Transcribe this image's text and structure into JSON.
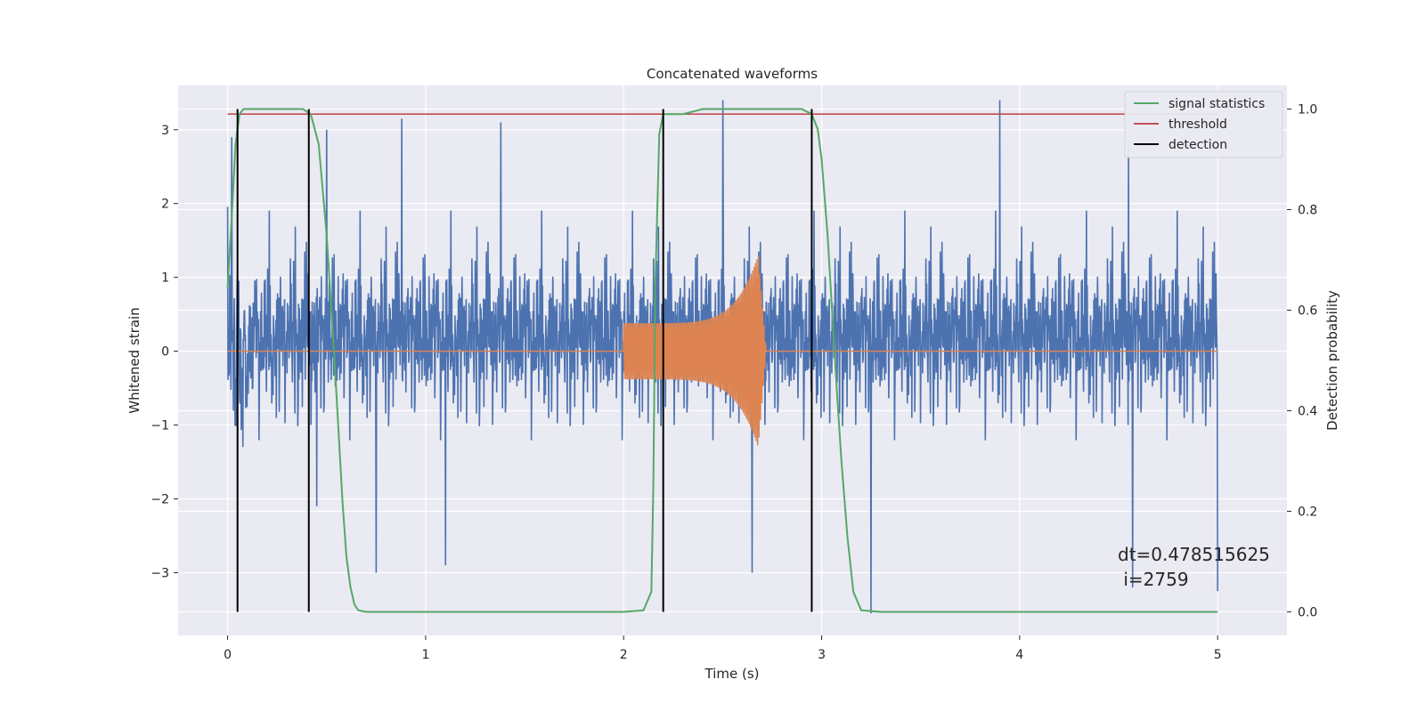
{
  "chart_data": {
    "type": "line",
    "title": "Concatenated waveforms",
    "xlabel": "Time (s)",
    "ylabel": "Whitened strain",
    "ylabel_right": "Detection probability",
    "xlim": [
      -0.25,
      5.35
    ],
    "ylim": [
      -3.85,
      3.6
    ],
    "ylim_right": [
      -0.047,
      1.047
    ],
    "x_ticks": [
      0,
      1,
      2,
      3,
      4,
      5
    ],
    "y_ticks": [
      -3,
      -2,
      -1,
      0,
      1,
      2,
      3
    ],
    "y_ticks_right": [
      0.0,
      0.2,
      0.4,
      0.6,
      0.8,
      1.0
    ],
    "y_tick_labels": [
      "−3",
      "−2",
      "−1",
      "0",
      "1",
      "2",
      "3"
    ],
    "y_tick_labels_right": [
      "0.0",
      "0.2",
      "0.4",
      "0.6",
      "0.8",
      "1.0"
    ],
    "x_tick_labels": [
      "0",
      "1",
      "2",
      "3",
      "4",
      "5"
    ],
    "grid": true,
    "legend_position": "top-right",
    "colors": {
      "strain": "#4c72b0",
      "injection": "#dd8452",
      "signal_statistics": "#55a868",
      "threshold": "#c44e52",
      "detection": "#000000",
      "plot_bg": "#eaeaf2",
      "grid": "#ffffff"
    },
    "series": [
      {
        "name": "",
        "axis": "left",
        "description_kind": "noise",
        "x_range": [
          0,
          5
        ],
        "peak_positive": [
          [
            0.02,
            2.9
          ],
          [
            0.5,
            3.0
          ],
          [
            0.88,
            3.15
          ],
          [
            1.38,
            3.1
          ],
          [
            2.5,
            3.4
          ],
          [
            3.9,
            3.4
          ],
          [
            4.55,
            2.85
          ]
        ],
        "peak_negative": [
          [
            0.45,
            -2.1
          ],
          [
            0.75,
            -3.0
          ],
          [
            1.1,
            -2.9
          ],
          [
            2.65,
            -3.0
          ],
          [
            3.25,
            -3.55
          ],
          [
            4.57,
            -3.2
          ],
          [
            5.0,
            -3.25
          ]
        ]
      },
      {
        "name": "",
        "axis": "left",
        "x_start": 2.0,
        "x_merger": 2.68,
        "x_end": 2.72,
        "amp_start": 0.38,
        "amp_peak": 1.3
      },
      {
        "name": "signal statistics",
        "axis": "right",
        "x": [
          0.0,
          0.02,
          0.04,
          0.06,
          0.08,
          0.1,
          0.15,
          0.2,
          0.3,
          0.38,
          0.42,
          0.46,
          0.5,
          0.54,
          0.58,
          0.6,
          0.62,
          0.64,
          0.66,
          0.7,
          0.8,
          1.0,
          1.5,
          2.0,
          2.1,
          2.14,
          2.15,
          2.16,
          2.18,
          2.2,
          2.25,
          2.3,
          2.4,
          2.5,
          2.7,
          2.8,
          2.9,
          2.95,
          2.98,
          3.0,
          3.03,
          3.06,
          3.08,
          3.1,
          3.13,
          3.16,
          3.2,
          3.3,
          4.0,
          5.0
        ],
        "y": [
          0.645,
          0.78,
          0.93,
          0.99,
          1.0,
          1.0,
          1.0,
          1.0,
          1.0,
          1.0,
          0.99,
          0.93,
          0.75,
          0.5,
          0.22,
          0.11,
          0.05,
          0.015,
          0.003,
          0.0,
          0.0,
          0.0,
          0.0,
          0.0,
          0.003,
          0.04,
          0.25,
          0.65,
          0.95,
          0.99,
          0.99,
          0.99,
          1.0,
          1.0,
          1.0,
          1.0,
          1.0,
          0.99,
          0.96,
          0.9,
          0.75,
          0.55,
          0.42,
          0.3,
          0.15,
          0.04,
          0.003,
          0.0,
          0.0,
          0.0
        ]
      },
      {
        "name": "threshold",
        "axis": "right",
        "x": [
          0.0,
          5.0
        ],
        "y": [
          0.99,
          0.99
        ]
      },
      {
        "name": "detection",
        "axis": "right",
        "type": "vlines",
        "x": [
          0.05,
          0.41,
          2.2,
          2.95
        ],
        "ymin": 0.0,
        "ymax": 1.0
      }
    ],
    "legend": [
      "signal statistics",
      "threshold",
      "detection"
    ],
    "annotations": [
      "dt=0.478515625",
      " i=2759"
    ]
  }
}
